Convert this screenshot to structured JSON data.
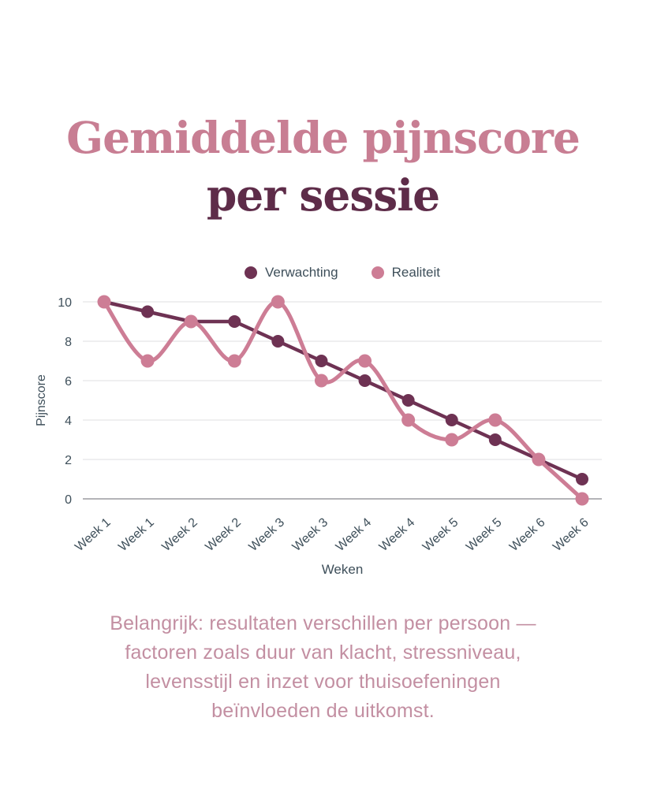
{
  "title": {
    "line1": "Gemiddelde pijnscore",
    "line2": "per sessie"
  },
  "colors": {
    "background": "#ffffff",
    "title_line1": "#c87e93",
    "title_line2": "#5e2c49",
    "axis_text": "#3e4f5a",
    "gridline": "#e5e5e8",
    "axis_line": "#9b9ba1",
    "note_text": "#c38fa2",
    "verwachting": "#6e3253",
    "realiteit": "#cd7d95"
  },
  "chart_data": {
    "type": "line",
    "title": "Gemiddelde pijnscore per sessie",
    "categories": [
      "Week 1",
      "Week 1",
      "Week 2",
      "Week 2",
      "Week 3",
      "Week 3",
      "Week 4",
      "Week 4",
      "Week 5",
      "Week 5",
      "Week 6",
      "Week 6"
    ],
    "series": [
      {
        "name": "Verwachting",
        "color": "#6e3253",
        "smooth": false,
        "values": [
          10,
          9.5,
          9,
          9,
          8,
          7,
          6,
          5,
          4,
          3,
          2,
          1
        ]
      },
      {
        "name": "Realiteit",
        "color": "#cd7d95",
        "smooth": true,
        "values": [
          10,
          7,
          9,
          7,
          10,
          6,
          7,
          4,
          3,
          4,
          2,
          0
        ]
      }
    ],
    "xlabel": "Weken",
    "ylabel": "Pijnscore",
    "ylim": [
      0,
      10
    ],
    "yticks": [
      0,
      2,
      4,
      6,
      8,
      10
    ],
    "grid": true,
    "legend_position": "top"
  },
  "note": {
    "lines": [
      "Belangrijk: resultaten verschillen per persoon —",
      "factoren zoals duur van klacht, stressniveau,",
      "levensstijl en inzet voor thuisoefeningen",
      "beïnvloeden de uitkomst."
    ]
  }
}
